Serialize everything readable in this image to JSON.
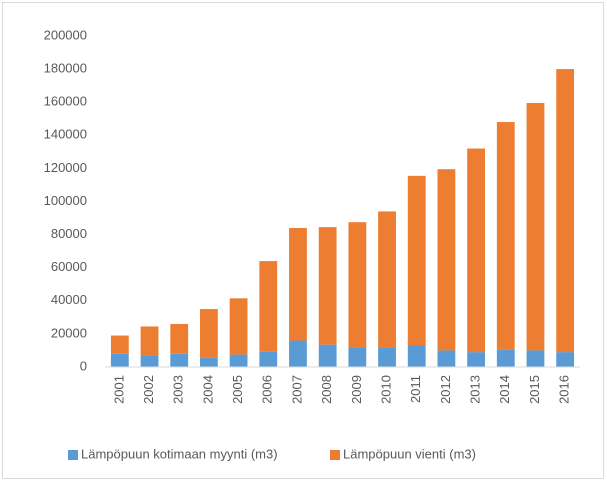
{
  "chart_data": {
    "type": "stacked_bar",
    "categories": [
      "2001",
      "2002",
      "2003",
      "2004",
      "2005",
      "2006",
      "2007",
      "2008",
      "2009",
      "2010",
      "2011",
      "2012",
      "2013",
      "2014",
      "2015",
      "2016"
    ],
    "series": [
      {
        "name": "Lämpöpuun kotimaan myynti (m3)",
        "color": "#5b9bd5",
        "values": [
          8000,
          7000,
          8000,
          5500,
          7500,
          9500,
          16000,
          13500,
          12000,
          12000,
          13000,
          10000,
          9000,
          10500,
          10000,
          9000
        ]
      },
      {
        "name": "Lämpöpuun vienti (m3)",
        "color": "#ed7d31",
        "values": [
          11000,
          17500,
          18000,
          29500,
          34000,
          54500,
          68000,
          71000,
          75500,
          82000,
          102500,
          109500,
          123000,
          137500,
          149500,
          171000
        ]
      }
    ],
    "ylim": [
      0,
      200000
    ],
    "yticks": [
      0,
      20000,
      40000,
      60000,
      80000,
      100000,
      120000,
      140000,
      160000,
      180000,
      200000
    ],
    "grid": false,
    "legend": "bottom"
  }
}
